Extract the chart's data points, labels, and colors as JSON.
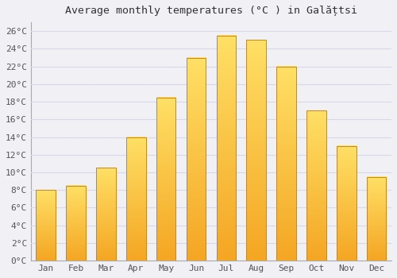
{
  "title": "Average monthly temperatures (°C ) in Galățtsi",
  "months": [
    "Jan",
    "Feb",
    "Mar",
    "Apr",
    "May",
    "Jun",
    "Jul",
    "Aug",
    "Sep",
    "Oct",
    "Nov",
    "Dec"
  ],
  "values": [
    8.0,
    8.5,
    10.5,
    14.0,
    18.5,
    23.0,
    25.5,
    25.0,
    22.0,
    17.0,
    13.0,
    9.5
  ],
  "bar_color_bottom": "#F5A623",
  "bar_color_top": "#FFD966",
  "bar_edge_color": "#C8871A",
  "ylim": [
    0,
    27
  ],
  "ytick_step": 2,
  "background_color": "#f0f0f5",
  "plot_area_color": "#f0f0f5",
  "grid_color": "#d8d8e8",
  "title_fontsize": 9.5,
  "tick_fontsize": 8,
  "bar_width": 0.65
}
